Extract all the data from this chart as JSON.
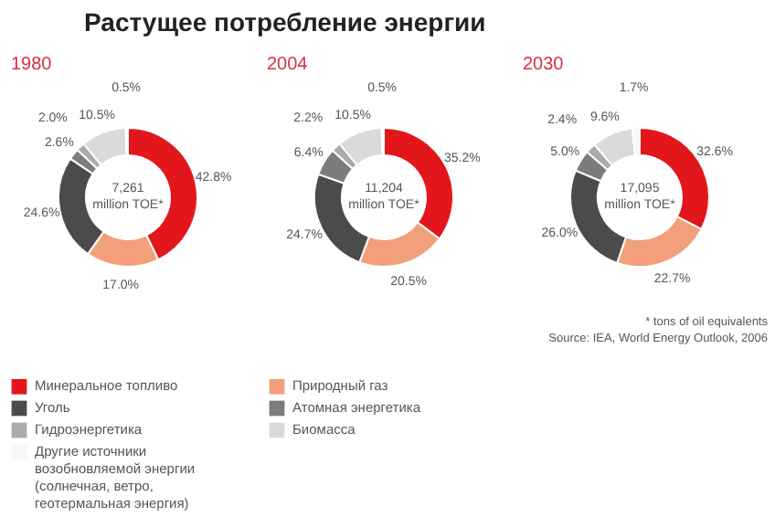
{
  "chart_data": [
    {
      "type": "donut",
      "title": "Растущее потребление энергии",
      "subtitle": "1980",
      "categories": [
        "Минеральное топливо",
        "Природный газ",
        "Уголь",
        "Атомная энергетика",
        "Гидроэнергетика",
        "Биомасса",
        "Другие источники возобновляемой энергии (солнечная, ветро, геотермальная энергия)"
      ],
      "values": [
        42.8,
        17.0,
        24.6,
        2.6,
        2.0,
        10.5,
        0.5
      ],
      "value_labels": [
        "42.8%",
        "17.0%",
        "24.6%",
        "2.6%",
        "2.0%",
        "10.5%",
        "0.5%"
      ],
      "colors": [
        "#e3161b",
        "#f2a07c",
        "#4b4b4b",
        "#7c7c7c",
        "#ababab",
        "#dadada",
        "#f8f8f8"
      ],
      "legend": "bottom",
      "annotations": [
        "7,261",
        "million TOE*"
      ]
    },
    {
      "type": "donut",
      "subtitle": "2004",
      "values": [
        35.2,
        20.5,
        24.7,
        6.4,
        2.2,
        10.5,
        0.5
      ],
      "value_labels": [
        "35.2%",
        "20.5%",
        "24.7%",
        "6.4%",
        "2.2%",
        "10.5%",
        "0.5%"
      ],
      "colors": [
        "#e3161b",
        "#f2a07c",
        "#4b4b4b",
        "#7c7c7c",
        "#ababab",
        "#dadada",
        "#f8f8f8"
      ],
      "annotations": [
        "11,204",
        "million TOE*"
      ]
    },
    {
      "type": "donut",
      "subtitle": "2030",
      "values": [
        32.6,
        22.7,
        26.0,
        5.0,
        2.4,
        9.6,
        1.7
      ],
      "value_labels": [
        "32.6%",
        "22.7%",
        "26.0%",
        "5.0%",
        "2.4%",
        "9.6%",
        "1.7%"
      ],
      "colors": [
        "#e3161b",
        "#f2a07c",
        "#4b4b4b",
        "#7c7c7c",
        "#ababab",
        "#dadada",
        "#f8f8f8"
      ],
      "annotations": [
        "17,095",
        "million TOE*",
        "* tons of oil equivalents",
        "Source: IEA, World Energy Outlook, 2006"
      ]
    }
  ]
}
